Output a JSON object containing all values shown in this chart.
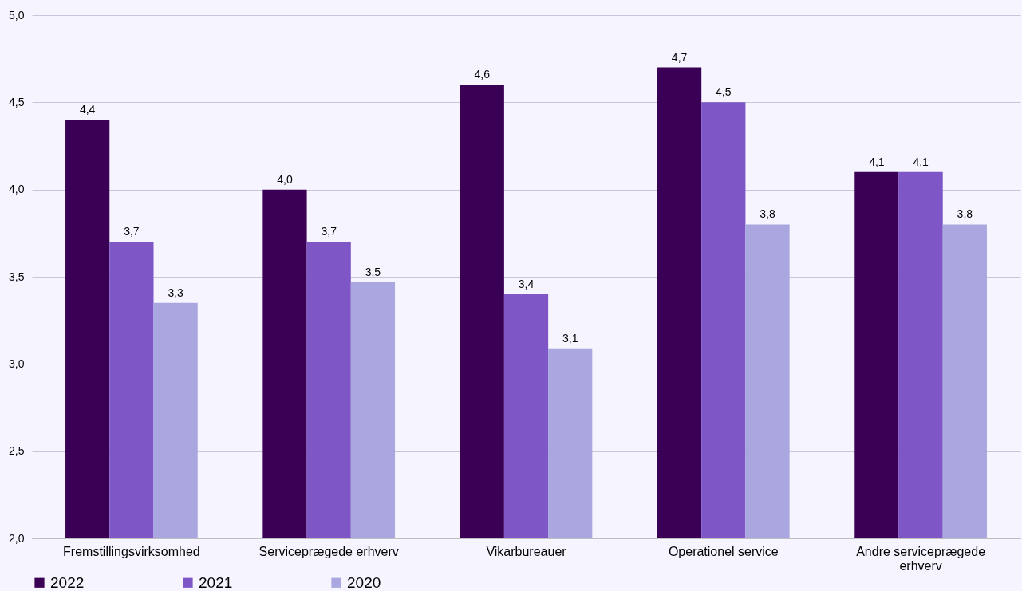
{
  "chart_data": {
    "type": "bar",
    "categories": [
      "Fremstillingsvirksomhed",
      "Serviceprægede erhverv",
      "Vikarbureauer",
      "Operationel service",
      "Andre serviceprægede erhverv"
    ],
    "series": [
      {
        "name": "2022",
        "color": "#3a0056",
        "values": [
          4.4,
          4.0,
          4.6,
          4.7,
          4.1
        ],
        "value_labels": [
          "4,4",
          "4,0",
          "4,6",
          "4,7",
          "4,1"
        ]
      },
      {
        "name": "2021",
        "color": "#7e56c6",
        "values": [
          3.7,
          3.7,
          3.4,
          4.5,
          4.1
        ],
        "value_labels": [
          "3,7",
          "3,7",
          "3,4",
          "4,5",
          "4,1"
        ]
      },
      {
        "name": "2020",
        "color": "#a9a6e0",
        "values": [
          3.35,
          3.47,
          3.09,
          3.8,
          3.8
        ],
        "value_labels": [
          "3,3",
          "3,5",
          "3,1",
          "3,8",
          "3,8"
        ]
      }
    ],
    "ylim": [
      2.0,
      5.0
    ],
    "yticks": [
      {
        "value": 2.0,
        "label": "2,0"
      },
      {
        "value": 2.5,
        "label": "2,5"
      },
      {
        "value": 3.0,
        "label": "3,0"
      },
      {
        "value": 3.5,
        "label": "3,5"
      },
      {
        "value": 4.0,
        "label": "4,0"
      },
      {
        "value": 4.5,
        "label": "4,5"
      },
      {
        "value": 5.0,
        "label": "5,0"
      }
    ],
    "grid": "y",
    "legend": "bottom"
  }
}
